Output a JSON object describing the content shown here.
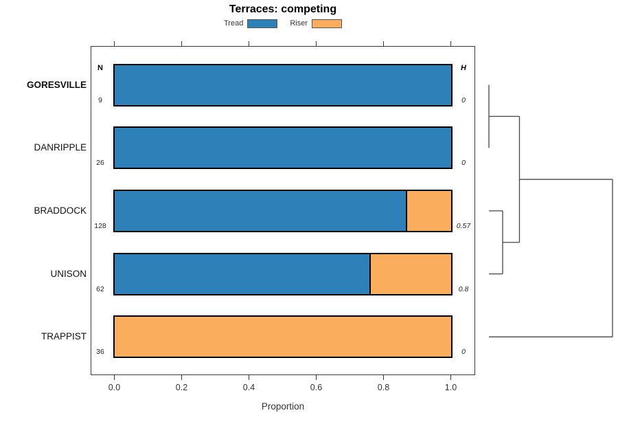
{
  "title": "Terraces: competing",
  "headers": {
    "n": "N",
    "h": "H"
  },
  "legend": {
    "items": [
      {
        "label": "Tread",
        "color": "#2E81B8"
      },
      {
        "label": "Riser",
        "color": "#FBAD5E"
      }
    ]
  },
  "axis": {
    "label": "Proportion",
    "tick_labels": [
      "0.0",
      "0.2",
      "0.4",
      "0.6",
      "0.8",
      "1.0"
    ],
    "tick_values": [
      0.0,
      0.2,
      0.4,
      0.6,
      0.8,
      1.0
    ],
    "range": [
      0,
      1
    ]
  },
  "chart_data": {
    "type": "bar",
    "orientation": "horizontal",
    "stacked": true,
    "title": "Terraces: competing",
    "xlabel": "Proportion",
    "xlim": [
      0,
      1
    ],
    "grid": false,
    "legend_position": "top",
    "categories": [
      "GORESVILLE",
      "DANRIPPLE",
      "BRADDOCK",
      "UNISON",
      "TRAPPIST"
    ],
    "highlighted_category": "GORESVILLE",
    "series": [
      {
        "name": "Tread",
        "color": "#2E81B8",
        "values": [
          1.0,
          1.0,
          0.867,
          0.758,
          0.0
        ]
      },
      {
        "name": "Riser",
        "color": "#FBAD5E",
        "values": [
          0.0,
          0.0,
          0.133,
          0.242,
          1.0
        ]
      }
    ],
    "row_annotations": {
      "N": [
        "9",
        "26",
        "128",
        "62",
        "36"
      ],
      "H": [
        "0",
        "0",
        "0.57",
        "0.8",
        "0"
      ]
    },
    "dendrogram": {
      "leaves": [
        "GORESVILLE",
        "DANRIPPLE",
        "BRADDOCK",
        "UNISON",
        "TRAPPIST"
      ],
      "leaf_x": 712,
      "joins": [
        {
          "id": "j1",
          "a": "GORESVILLE",
          "b": "DANRIPPLE",
          "x": 712
        },
        {
          "id": "j2",
          "a": "BRADDOCK",
          "b": "UNISON",
          "x": 732
        },
        {
          "id": "j3",
          "a": "j1",
          "b": "j2",
          "x": 756.5
        },
        {
          "id": "j4",
          "a": "j3",
          "b": "TRAPPIST",
          "x": 892
        }
      ]
    }
  },
  "colors": {
    "tread": "#2E81B8",
    "riser": "#FBAD5E",
    "bar_border": "#000000",
    "box_border": "#3a3a3a",
    "dendrogram_line": "#444444",
    "tick": "#333333"
  }
}
